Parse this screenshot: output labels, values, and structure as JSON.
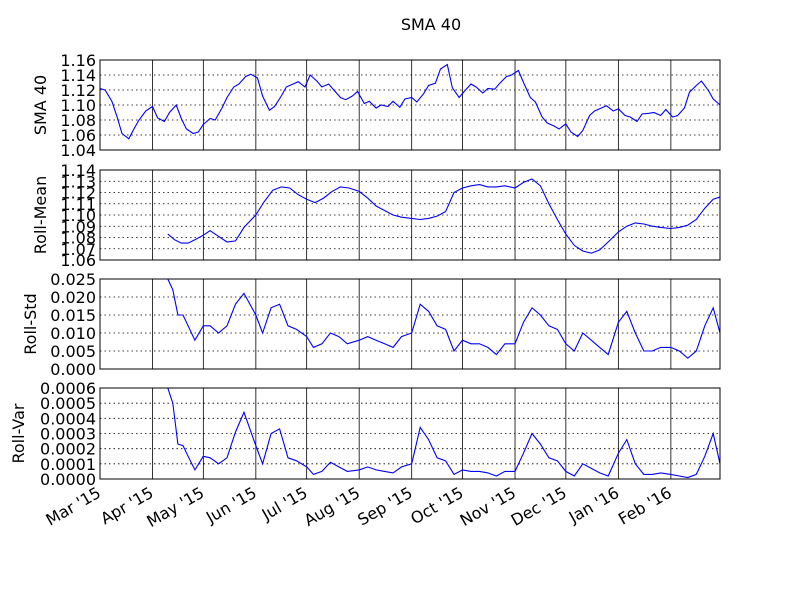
{
  "chart_data": {
    "type": "line",
    "title": "SMA 40",
    "x_tick_labels": [
      "Mar '15",
      "Apr '15",
      "May '15",
      "Jun '15",
      "Jul '15",
      "Aug '15",
      "Sep '15",
      "Oct '15",
      "Nov '15",
      "Dec '15",
      "Jan '16",
      "Feb '16"
    ],
    "xlim": [
      "2015-03-01",
      "2016-03-01"
    ],
    "grid": true,
    "panels": [
      {
        "ylabel": "SMA 40",
        "ylim": [
          1.04,
          1.16
        ],
        "yticks": [
          "1.04",
          "1.06",
          "1.08",
          "1.10",
          "1.12",
          "1.14",
          "1.16"
        ],
        "series": [
          {
            "x": [
              "2015-03-01",
              "2015-03-04",
              "2015-03-08",
              "2015-03-11",
              "2015-03-14",
              "2015-03-18",
              "2015-03-21",
              "2015-03-24",
              "2015-03-28",
              "2015-04-01",
              "2015-04-04",
              "2015-04-08",
              "2015-04-11",
              "2015-04-15",
              "2015-04-18",
              "2015-04-21",
              "2015-04-25",
              "2015-04-28",
              "2015-05-01",
              "2015-05-05",
              "2015-05-08",
              "2015-05-12",
              "2015-05-15",
              "2015-05-19",
              "2015-05-22",
              "2015-05-26",
              "2015-05-29",
              "2015-06-02",
              "2015-06-05",
              "2015-06-09",
              "2015-06-12",
              "2015-06-16",
              "2015-06-19",
              "2015-06-23",
              "2015-06-26",
              "2015-06-30",
              "2015-07-03",
              "2015-07-07",
              "2015-07-10",
              "2015-07-14",
              "2015-07-17",
              "2015-07-21",
              "2015-07-24",
              "2015-07-28",
              "2015-07-31",
              "2015-08-04",
              "2015-08-07",
              "2015-08-11",
              "2015-08-14",
              "2015-08-18",
              "2015-08-21",
              "2015-08-25",
              "2015-08-28",
              "2015-09-01",
              "2015-09-04",
              "2015-09-08",
              "2015-09-11",
              "2015-09-15",
              "2015-09-18",
              "2015-09-22",
              "2015-09-25",
              "2015-09-29",
              "2015-10-02",
              "2015-10-06",
              "2015-10-09",
              "2015-10-13",
              "2015-10-16",
              "2015-10-20",
              "2015-10-23",
              "2015-10-27",
              "2015-10-30",
              "2015-11-03",
              "2015-11-06",
              "2015-11-10",
              "2015-11-13",
              "2015-11-17",
              "2015-11-20",
              "2015-11-24",
              "2015-11-27",
              "2015-12-01",
              "2015-12-04",
              "2015-12-08",
              "2015-12-11",
              "2015-12-15",
              "2015-12-18",
              "2015-12-22",
              "2015-12-25",
              "2015-12-29",
              "2016-01-01",
              "2016-01-05",
              "2016-01-08",
              "2016-01-12",
              "2016-01-15",
              "2016-01-19",
              "2016-01-22",
              "2016-01-26",
              "2016-01-29",
              "2016-02-02",
              "2016-02-05",
              "2016-02-09",
              "2016-02-12",
              "2016-02-16",
              "2016-02-19",
              "2016-02-23",
              "2016-02-26",
              "2016-03-01"
            ],
            "y": [
              1.122,
              1.12,
              1.105,
              1.085,
              1.062,
              1.055,
              1.068,
              1.08,
              1.092,
              1.098,
              1.083,
              1.078,
              1.09,
              1.1,
              1.082,
              1.068,
              1.062,
              1.064,
              1.074,
              1.082,
              1.08,
              1.096,
              1.11,
              1.124,
              1.128,
              1.138,
              1.141,
              1.136,
              1.112,
              1.093,
              1.098,
              1.112,
              1.124,
              1.128,
              1.131,
              1.124,
              1.14,
              1.132,
              1.124,
              1.128,
              1.12,
              1.11,
              1.107,
              1.112,
              1.118,
              1.102,
              1.105,
              1.096,
              1.1,
              1.098,
              1.105,
              1.097,
              1.108,
              1.11,
              1.104,
              1.115,
              1.126,
              1.129,
              1.148,
              1.154,
              1.123,
              1.11,
              1.118,
              1.128,
              1.124,
              1.116,
              1.122,
              1.121,
              1.129,
              1.138,
              1.14,
              1.146,
              1.13,
              1.11,
              1.104,
              1.084,
              1.076,
              1.072,
              1.068,
              1.075,
              1.064,
              1.058,
              1.066,
              1.086,
              1.092,
              1.096,
              1.099,
              1.092,
              1.095,
              1.086,
              1.084,
              1.078,
              1.088,
              1.089,
              1.09,
              1.086,
              1.094,
              1.084,
              1.086,
              1.096,
              1.117,
              1.126,
              1.132,
              1.12,
              1.108,
              1.1
            ]
          }
        ]
      },
      {
        "ylabel": "Roll-Mean",
        "ylim": [
          1.06,
          1.14
        ],
        "yticks": [
          "1.06",
          "1.07",
          "1.08",
          "1.09",
          "1.10",
          "1.11",
          "1.12",
          "1.13",
          "1.14"
        ],
        "series": [
          {
            "x": [
              "2015-04-10",
              "2015-04-14",
              "2015-04-18",
              "2015-04-22",
              "2015-04-26",
              "2015-05-01",
              "2015-05-05",
              "2015-05-10",
              "2015-05-15",
              "2015-05-20",
              "2015-05-25",
              "2015-06-01",
              "2015-06-06",
              "2015-06-11",
              "2015-06-16",
              "2015-06-21",
              "2015-06-26",
              "2015-07-01",
              "2015-07-06",
              "2015-07-11",
              "2015-07-16",
              "2015-07-21",
              "2015-07-26",
              "2015-08-01",
              "2015-08-06",
              "2015-08-11",
              "2015-08-16",
              "2015-08-21",
              "2015-08-26",
              "2015-09-01",
              "2015-09-06",
              "2015-09-11",
              "2015-09-16",
              "2015-09-21",
              "2015-09-26",
              "2015-10-01",
              "2015-10-06",
              "2015-10-11",
              "2015-10-16",
              "2015-10-21",
              "2015-10-26",
              "2015-11-01",
              "2015-11-06",
              "2015-11-11",
              "2015-11-16",
              "2015-11-21",
              "2015-11-26",
              "2015-12-01",
              "2015-12-06",
              "2015-12-11",
              "2015-12-16",
              "2015-12-21",
              "2015-12-26",
              "2016-01-01",
              "2016-01-06",
              "2016-01-11",
              "2016-01-16",
              "2016-01-21",
              "2016-01-26",
              "2016-02-01",
              "2016-02-06",
              "2016-02-11",
              "2016-02-16",
              "2016-02-21",
              "2016-02-26",
              "2016-03-01"
            ],
            "y": [
              1.083,
              1.078,
              1.075,
              1.075,
              1.078,
              1.082,
              1.086,
              1.081,
              1.076,
              1.077,
              1.089,
              1.1,
              1.112,
              1.122,
              1.125,
              1.124,
              1.118,
              1.114,
              1.111,
              1.115,
              1.121,
              1.125,
              1.124,
              1.121,
              1.115,
              1.108,
              1.104,
              1.1,
              1.098,
              1.097,
              1.096,
              1.097,
              1.099,
              1.103,
              1.12,
              1.124,
              1.126,
              1.127,
              1.125,
              1.125,
              1.126,
              1.124,
              1.129,
              1.132,
              1.126,
              1.11,
              1.096,
              1.083,
              1.073,
              1.068,
              1.066,
              1.069,
              1.076,
              1.085,
              1.09,
              1.093,
              1.092,
              1.09,
              1.089,
              1.088,
              1.089,
              1.091,
              1.096,
              1.106,
              1.114,
              1.116
            ]
          }
        ]
      },
      {
        "ylabel": "Roll-Std",
        "ylim": [
          0,
          0.025
        ],
        "yticks": [
          "0.000",
          "0.005",
          "0.010",
          "0.015",
          "0.020",
          "0.025"
        ],
        "series": [
          {
            "x": [
              "2015-04-10",
              "2015-04-13",
              "2015-04-16",
              "2015-04-19",
              "2015-04-22",
              "2015-04-26",
              "2015-05-01",
              "2015-05-05",
              "2015-05-10",
              "2015-05-15",
              "2015-05-20",
              "2015-05-25",
              "2015-06-01",
              "2015-06-05",
              "2015-06-10",
              "2015-06-15",
              "2015-06-20",
              "2015-06-25",
              "2015-07-01",
              "2015-07-05",
              "2015-07-10",
              "2015-07-15",
              "2015-07-20",
              "2015-07-25",
              "2015-08-01",
              "2015-08-06",
              "2015-08-11",
              "2015-08-16",
              "2015-08-21",
              "2015-08-26",
              "2015-09-01",
              "2015-09-06",
              "2015-09-11",
              "2015-09-16",
              "2015-09-21",
              "2015-09-26",
              "2015-10-01",
              "2015-10-06",
              "2015-10-11",
              "2015-10-16",
              "2015-10-21",
              "2015-10-26",
              "2015-11-01",
              "2015-11-06",
              "2015-11-11",
              "2015-11-16",
              "2015-11-21",
              "2015-11-26",
              "2015-12-01",
              "2015-12-06",
              "2015-12-11",
              "2015-12-16",
              "2015-12-21",
              "2015-12-26",
              "2016-01-01",
              "2016-01-06",
              "2016-01-11",
              "2016-01-16",
              "2016-01-21",
              "2016-01-26",
              "2016-02-01",
              "2016-02-06",
              "2016-02-11",
              "2016-02-16",
              "2016-02-21",
              "2016-02-26",
              "2016-03-01"
            ],
            "y": [
              0.025,
              0.022,
              0.015,
              0.015,
              0.012,
              0.008,
              0.012,
              0.012,
              0.01,
              0.012,
              0.018,
              0.021,
              0.015,
              0.01,
              0.017,
              0.018,
              0.012,
              0.011,
              0.009,
              0.006,
              0.007,
              0.01,
              0.009,
              0.007,
              0.008,
              0.009,
              0.008,
              0.007,
              0.006,
              0.009,
              0.01,
              0.018,
              0.016,
              0.012,
              0.011,
              0.005,
              0.008,
              0.007,
              0.007,
              0.006,
              0.004,
              0.007,
              0.007,
              0.013,
              0.017,
              0.015,
              0.012,
              0.011,
              0.007,
              0.005,
              0.01,
              0.008,
              0.006,
              0.004,
              0.013,
              0.016,
              0.01,
              0.005,
              0.005,
              0.006,
              0.006,
              0.005,
              0.003,
              0.005,
              0.012,
              0.017,
              0.01
            ]
          }
        ]
      },
      {
        "ylabel": "Roll-Var",
        "ylim": [
          0,
          0.0006
        ],
        "yticks": [
          "0.0000",
          "0.0001",
          "0.0002",
          "0.0003",
          "0.0004",
          "0.0005",
          "0.0006"
        ],
        "series": [
          {
            "x": [
              "2015-04-10",
              "2015-04-13",
              "2015-04-16",
              "2015-04-19",
              "2015-04-22",
              "2015-04-26",
              "2015-05-01",
              "2015-05-05",
              "2015-05-10",
              "2015-05-15",
              "2015-05-20",
              "2015-05-25",
              "2015-06-01",
              "2015-06-05",
              "2015-06-10",
              "2015-06-15",
              "2015-06-20",
              "2015-06-25",
              "2015-07-01",
              "2015-07-05",
              "2015-07-10",
              "2015-07-15",
              "2015-07-20",
              "2015-07-25",
              "2015-08-01",
              "2015-08-06",
              "2015-08-11",
              "2015-08-16",
              "2015-08-21",
              "2015-08-26",
              "2015-09-01",
              "2015-09-06",
              "2015-09-11",
              "2015-09-16",
              "2015-09-21",
              "2015-09-26",
              "2015-10-01",
              "2015-10-06",
              "2015-10-11",
              "2015-10-16",
              "2015-10-21",
              "2015-10-26",
              "2015-11-01",
              "2015-11-06",
              "2015-11-11",
              "2015-11-16",
              "2015-11-21",
              "2015-11-26",
              "2015-12-01",
              "2015-12-06",
              "2015-12-11",
              "2015-12-16",
              "2015-12-21",
              "2015-12-26",
              "2016-01-01",
              "2016-01-06",
              "2016-01-11",
              "2016-01-16",
              "2016-01-21",
              "2016-01-26",
              "2016-02-01",
              "2016-02-06",
              "2016-02-11",
              "2016-02-16",
              "2016-02-21",
              "2016-02-26",
              "2016-03-01"
            ],
            "y": [
              0.0006,
              0.0005,
              0.00023,
              0.00022,
              0.00015,
              6e-05,
              0.00015,
              0.00014,
              0.0001,
              0.00014,
              0.00031,
              0.00044,
              0.00022,
              0.0001,
              0.0003,
              0.00033,
              0.00014,
              0.00012,
              8e-05,
              3e-05,
              5e-05,
              0.00011,
              8e-05,
              5e-05,
              6e-05,
              8e-05,
              6e-05,
              5e-05,
              4e-05,
              8e-05,
              0.0001,
              0.00034,
              0.00026,
              0.00014,
              0.00012,
              3e-05,
              6e-05,
              5e-05,
              5e-05,
              4e-05,
              2e-05,
              5e-05,
              5e-05,
              0.00017,
              0.0003,
              0.00023,
              0.00014,
              0.00012,
              5e-05,
              2e-05,
              0.0001,
              7e-05,
              4e-05,
              2e-05,
              0.00017,
              0.00026,
              0.0001,
              3e-05,
              3e-05,
              4e-05,
              3e-05,
              2e-05,
              1e-05,
              3e-05,
              0.00015,
              0.0003,
              0.0001
            ]
          }
        ]
      }
    ]
  }
}
